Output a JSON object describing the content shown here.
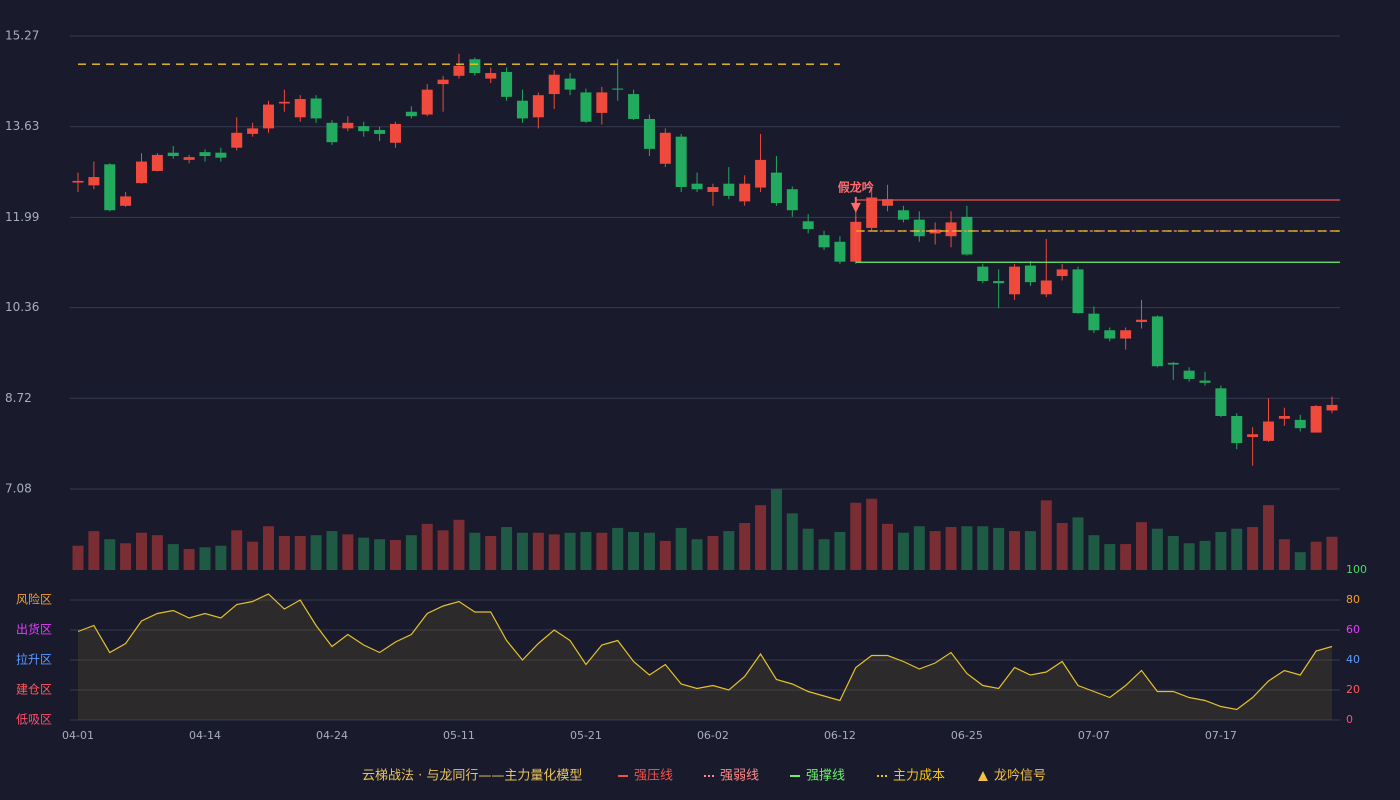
{
  "chart_data": [
    {
      "type": "candlestick",
      "categories": [
        "04-01",
        null,
        null,
        null,
        null,
        null,
        null,
        null,
        "04-14",
        null,
        null,
        null,
        null,
        null,
        null,
        null,
        "04-24",
        null,
        null,
        null,
        null,
        null,
        null,
        null,
        "05-11",
        null,
        null,
        null,
        null,
        null,
        null,
        null,
        "05-21",
        null,
        null,
        null,
        null,
        null,
        null,
        null,
        "06-02",
        null,
        null,
        null,
        null,
        null,
        null,
        null,
        "06-12",
        null,
        null,
        null,
        null,
        null,
        null,
        null,
        "06-25",
        null,
        null,
        null,
        null,
        null,
        null,
        null,
        "07-07",
        null,
        null,
        null,
        null,
        null,
        null,
        null,
        "07-17",
        null,
        null,
        null,
        null,
        null,
        null,
        null
      ],
      "open": [
        12.62,
        12.57,
        12.95,
        12.2,
        12.61,
        12.83,
        13.16,
        13.03,
        13.17,
        13.16,
        13.25,
        13.5,
        13.6,
        14.05,
        13.8,
        14.14,
        13.7,
        13.6,
        13.64,
        13.57,
        13.34,
        13.9,
        13.85,
        14.4,
        14.55,
        14.85,
        14.5,
        14.62,
        14.1,
        13.8,
        14.22,
        14.5,
        14.25,
        13.88,
        14.32,
        14.22,
        13.77,
        12.96,
        13.45,
        12.6,
        12.45,
        12.6,
        12.28,
        12.53,
        12.8,
        12.5,
        11.92,
        11.67,
        11.55,
        11.19,
        11.8,
        12.2,
        12.12,
        11.95,
        11.7,
        11.65,
        12.0,
        11.1,
        10.84,
        10.6,
        11.12,
        10.6,
        10.93,
        11.05,
        10.25,
        9.95,
        9.8,
        10.1,
        10.2,
        9.36,
        9.22,
        9.04,
        8.9,
        8.4,
        8.02,
        7.95,
        8.35,
        8.33,
        8.1,
        8.5
      ],
      "high": [
        12.8,
        13.0,
        12.97,
        12.45,
        13.15,
        13.15,
        13.28,
        13.12,
        13.22,
        13.25,
        13.8,
        13.7,
        14.1,
        14.3,
        14.2,
        14.2,
        13.75,
        13.82,
        13.72,
        13.63,
        13.72,
        14.0,
        14.4,
        14.55,
        14.95,
        14.88,
        14.7,
        14.7,
        14.3,
        14.25,
        14.65,
        14.6,
        14.32,
        14.35,
        14.85,
        14.3,
        13.85,
        13.6,
        13.5,
        12.8,
        12.6,
        12.9,
        12.75,
        13.5,
        13.1,
        12.55,
        12.05,
        11.75,
        11.65,
        12.0,
        12.55,
        12.58,
        12.2,
        12.1,
        11.9,
        12.1,
        12.2,
        11.15,
        11.05,
        11.15,
        11.2,
        11.6,
        11.15,
        11.1,
        10.38,
        10.0,
        10.0,
        10.5,
        10.22,
        9.38,
        9.28,
        9.2,
        8.95,
        8.45,
        8.2,
        8.72,
        8.55,
        8.42,
        8.6,
        8.75
      ],
      "low": [
        12.45,
        12.5,
        12.1,
        12.18,
        12.6,
        12.82,
        13.05,
        12.97,
        13.0,
        13.0,
        13.2,
        13.45,
        13.52,
        13.9,
        13.72,
        13.7,
        13.3,
        13.55,
        13.45,
        13.37,
        13.25,
        13.78,
        13.82,
        13.9,
        14.5,
        14.55,
        14.42,
        14.1,
        13.7,
        13.6,
        13.95,
        14.2,
        13.7,
        13.67,
        14.1,
        13.75,
        13.1,
        12.9,
        12.45,
        12.45,
        12.2,
        12.32,
        12.2,
        12.45,
        12.2,
        12.0,
        11.7,
        11.4,
        11.15,
        11.15,
        11.75,
        12.1,
        11.9,
        11.55,
        11.5,
        11.45,
        11.3,
        10.8,
        10.35,
        10.5,
        10.75,
        10.55,
        10.85,
        10.25,
        9.9,
        9.75,
        9.6,
        9.98,
        9.28,
        9.05,
        9.02,
        8.95,
        8.38,
        7.8,
        7.5,
        7.93,
        8.22,
        8.12,
        8.1,
        8.45
      ],
      "close": [
        12.65,
        12.72,
        12.12,
        12.37,
        13.0,
        13.12,
        13.1,
        13.08,
        13.1,
        13.07,
        13.52,
        13.6,
        14.03,
        14.08,
        14.13,
        13.78,
        13.35,
        13.7,
        13.55,
        13.5,
        13.68,
        13.82,
        14.3,
        14.48,
        14.73,
        14.6,
        14.6,
        14.17,
        13.78,
        14.2,
        14.57,
        14.3,
        13.72,
        14.25,
        14.3,
        13.77,
        13.23,
        13.52,
        12.54,
        12.5,
        12.54,
        12.38,
        12.6,
        13.03,
        12.25,
        12.12,
        11.78,
        11.45,
        11.19,
        11.91,
        12.35,
        12.32,
        11.95,
        11.65,
        11.77,
        11.9,
        11.32,
        10.84,
        10.8,
        11.1,
        10.82,
        10.85,
        11.05,
        10.26,
        9.95,
        9.8,
        9.95,
        10.14,
        9.3,
        9.33,
        9.07,
        9.0,
        8.4,
        7.91,
        8.07,
        8.3,
        8.4,
        8.18,
        8.58,
        8.6
      ],
      "up_color": "#ef4a3c",
      "down_color": "#22ab5f",
      "ylim": [
        7.08,
        15.27
      ],
      "yticks": [
        15.27,
        13.63,
        11.99,
        10.36,
        8.72,
        7.08
      ],
      "grid": true,
      "levels": [
        {
          "name": "强压线",
          "color": "#f0524a",
          "style": "solid",
          "segments": [
            {
              "value": 12.305,
              "from": 49
            }
          ]
        },
        {
          "name": "强弱线",
          "color": "#ff8a8a",
          "style": "dotted",
          "segments": [
            {
              "value": 11.745,
              "from": 49
            }
          ]
        },
        {
          "name": "强撑线",
          "color": "#6cf06a",
          "style": "solid",
          "segments": [
            {
              "value": 11.18,
              "from": 49
            }
          ]
        },
        {
          "name": "主力成本",
          "color": "#f2c21b",
          "style": "dashed",
          "segments": [
            {
              "value": 14.76,
              "from": 0,
              "to": 48
            },
            {
              "value": 11.745,
              "from": 49
            }
          ]
        }
      ],
      "signal": {
        "name": "龙吟信号",
        "color": "#f2c244",
        "marks": [
          {
            "index": 49,
            "label": "假龙吟",
            "color": "#ff6b6b"
          }
        ]
      }
    },
    {
      "type": "bar",
      "values": [
        30,
        48,
        38,
        33,
        46,
        43,
        32,
        26,
        28,
        30,
        49,
        35,
        54,
        42,
        42,
        43,
        48,
        44,
        40,
        38,
        37,
        43,
        57,
        49,
        62,
        46,
        42,
        53,
        46,
        46,
        44,
        46,
        47,
        46,
        52,
        47,
        46,
        36,
        52,
        38,
        42,
        48,
        58,
        80,
        100,
        70,
        51,
        38,
        47,
        83,
        88,
        57,
        46,
        54,
        48,
        53,
        54,
        54,
        52,
        48,
        48,
        86,
        58,
        65,
        43,
        32,
        32,
        59,
        51,
        42,
        33,
        36,
        47,
        51,
        53,
        80,
        38,
        22,
        35,
        41
      ],
      "ylim": [
        0,
        100
      ],
      "up_color": "#7a2e33",
      "down_color": "#1f5a45"
    },
    {
      "type": "line",
      "values": [
        59,
        63,
        45,
        51,
        66,
        71,
        73,
        68,
        71,
        68,
        77,
        79,
        84,
        74,
        80,
        63,
        49,
        57,
        50,
        45,
        52,
        57,
        71,
        76,
        79,
        72,
        72,
        53,
        40,
        51,
        60,
        53,
        37,
        50,
        53,
        39,
        30,
        37,
        24,
        21,
        23,
        20,
        29,
        44,
        27,
        24,
        19,
        16,
        13,
        35,
        43,
        43,
        39,
        34,
        38,
        45,
        31,
        23,
        21,
        35,
        30,
        32,
        39,
        23,
        19,
        15,
        23,
        33,
        19,
        19,
        15,
        13,
        9,
        7,
        15,
        26,
        33,
        30,
        46,
        49
      ],
      "color": "#e3c12a",
      "ylim": [
        0,
        100
      ],
      "yticks": [
        {
          "value": 80,
          "label": "风险区"
        },
        {
          "value": 60,
          "label": "出货区"
        },
        {
          "value": 40,
          "label": "拉升区"
        },
        {
          "value": 20,
          "label": "建仓区"
        },
        {
          "value": 0,
          "label": "低吸区"
        }
      ],
      "ytick_colors": [
        "#f0a030",
        "#e040fb",
        "#5b9bff",
        "#ff5a5a",
        "#ff4d6d"
      ],
      "y2lim": [
        0,
        100
      ],
      "y2ticks": [
        100,
        80,
        60,
        40,
        20,
        0
      ],
      "y2tick_colors": [
        "#4cd964",
        "#f0a030",
        "#e040fb",
        "#5b9bff",
        "#ff5a5a",
        "#ff4d6d"
      ],
      "grid": true
    }
  ],
  "legend_title": "云梯战法 · 与龙同行——主力量化模型"
}
